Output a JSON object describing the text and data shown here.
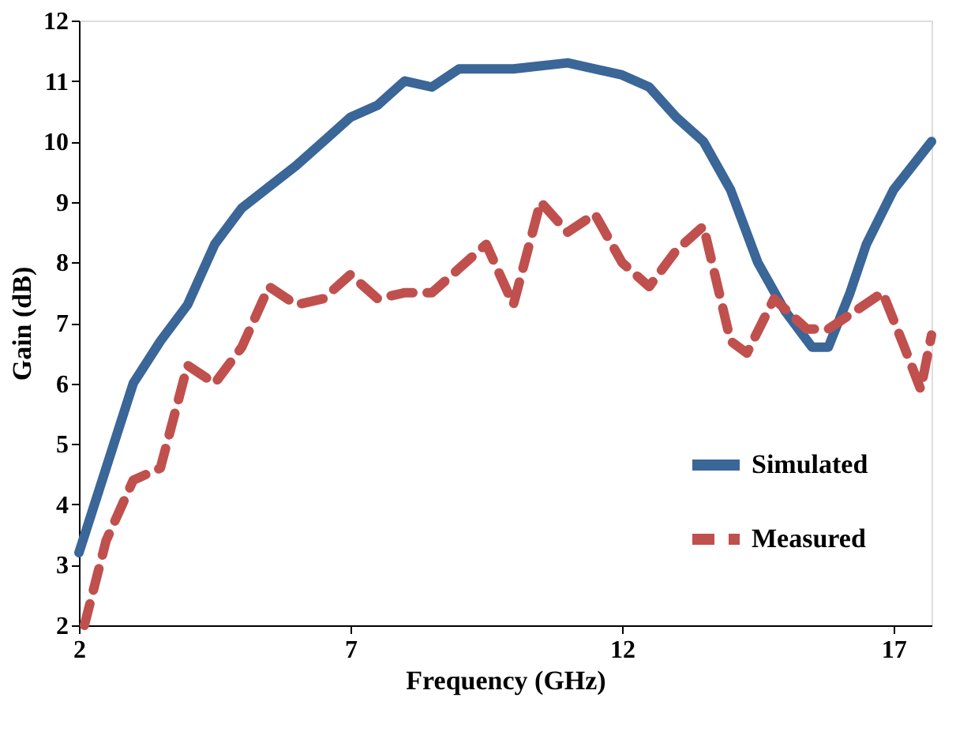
{
  "chart_data": {
    "type": "line",
    "xlabel": "Frequency (GHz)",
    "ylabel": "Gain (dB)",
    "xlim": [
      2,
      17.7
    ],
    "xticks": [
      2,
      7,
      12,
      17
    ],
    "ylim": [
      2,
      12
    ],
    "yticks": [
      2,
      3,
      4,
      5,
      6,
      7,
      8,
      9,
      10,
      11,
      12
    ],
    "grid": false,
    "legend": "bottom right",
    "marker": "none",
    "series": [
      {
        "name": "Simulated",
        "color": "#3a6698",
        "line_style": "solid",
        "x": [
          2,
          2.5,
          3,
          3.5,
          4,
          4.5,
          5,
          6,
          6.5,
          7,
          7.5,
          8,
          8.5,
          9,
          10,
          11,
          12,
          12.5,
          13,
          13.5,
          14,
          14.5,
          15,
          15.5,
          15.8,
          16.2,
          16.5,
          17,
          17.7
        ],
        "values": [
          3.2,
          4.6,
          6.0,
          6.7,
          7.3,
          8.3,
          8.9,
          9.6,
          10.0,
          10.4,
          10.6,
          11.0,
          10.9,
          11.2,
          11.2,
          11.3,
          11.1,
          10.9,
          10.4,
          10.0,
          9.2,
          8.0,
          7.2,
          6.6,
          6.6,
          7.5,
          8.3,
          9.2,
          10.0
        ]
      },
      {
        "name": "Measured",
        "color": "#c0504d",
        "line_style": "dashed",
        "x": [
          2.1,
          2.5,
          3,
          3.5,
          4,
          4.5,
          5,
          5.5,
          6,
          6.5,
          7,
          7.5,
          8,
          8.5,
          9,
          9.5,
          10,
          10.5,
          11,
          11.5,
          12,
          12.5,
          13,
          13.5,
          14,
          14.3,
          14.8,
          15.4,
          15.8,
          16.3,
          16.8,
          17.2,
          17.5,
          17.7
        ],
        "values": [
          2.0,
          3.4,
          4.4,
          4.6,
          6.3,
          6.0,
          6.6,
          7.6,
          7.3,
          7.4,
          7.8,
          7.4,
          7.5,
          7.5,
          7.9,
          8.3,
          7.3,
          9.0,
          8.5,
          8.8,
          8.0,
          7.6,
          8.2,
          8.6,
          6.7,
          6.5,
          7.4,
          6.9,
          6.9,
          7.2,
          7.5,
          6.6,
          5.9,
          6.8
        ]
      }
    ]
  }
}
